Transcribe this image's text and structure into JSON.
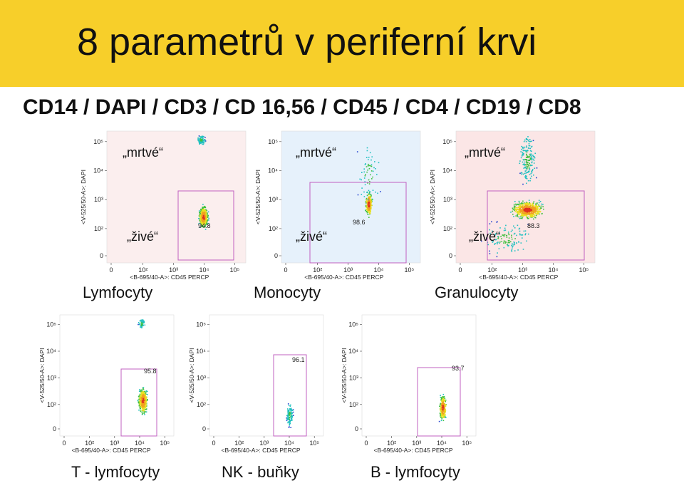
{
  "title": "8 parametrů v periferní krvi",
  "subtitle": "CD14 / DAPI / CD3 / CD 16,56 / CD45 / CD4 / CD19 / CD8",
  "plots": [
    {
      "caption": "Lymfocyty",
      "bg": "#fbeeee",
      "gate_value": "94.8",
      "ylabel": "<V-525/50-A>: DAPI",
      "xlabel": "<B-695/40-A>: CD45 PERCP",
      "label_dead": "„mrtvé“",
      "label_live": "„živé“"
    },
    {
      "caption": "Monocyty",
      "bg": "#e6f1fb",
      "gate_value": "98.6",
      "ylabel": "<V-525/50-A>: DAPI",
      "xlabel": "<B-695/40-A>: CD45 PERCP",
      "label_dead": "„mrtvé“",
      "label_live": "„živé“"
    },
    {
      "caption": "Granulocyty",
      "bg": "#fbe6e6",
      "gate_value": "88.3",
      "ylabel": "<V-525/50-A>: DAPI",
      "xlabel": "<B-695/40-A>: CD45 PERCP",
      "label_dead": "„mrtvé“",
      "label_live": "„živé“"
    },
    {
      "caption": "T - lymfocyty",
      "bg": "#ffffff",
      "gate_value": "95.8",
      "ylabel": "<V-525/50-A>: DAPI",
      "xlabel": "<B-695/40-A>: CD45 PERCP"
    },
    {
      "caption": "NK - buňky",
      "bg": "#ffffff",
      "gate_value": "96.1",
      "ylabel": "<V-525/50-A>: DAPI",
      "xlabel": "<B-695/40-A>: CD45 PERCP"
    },
    {
      "caption": "B - lymfocyty",
      "bg": "#ffffff",
      "gate_value": "93.7",
      "ylabel": "<V-525/50-A>: DAPI",
      "xlabel": "<B-695/40-A>: CD45 PERCP"
    }
  ],
  "axis_ticks": {
    "x": [
      "0",
      "10²",
      "10³",
      "10⁴",
      "10⁵"
    ],
    "y": [
      "0",
      "10²",
      "10³",
      "10⁴",
      "10⁵"
    ]
  },
  "colors": {
    "banner": "#f7cf2a",
    "gate": "#c060c0"
  }
}
